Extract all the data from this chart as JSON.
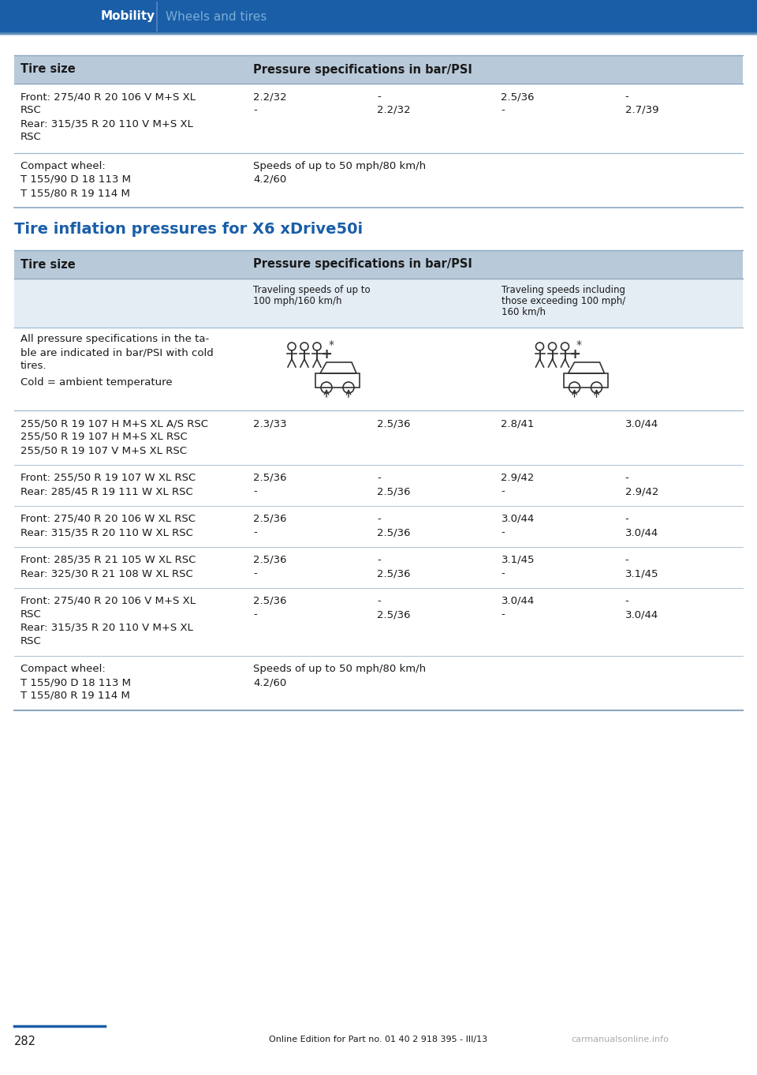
{
  "page_bg": "#ffffff",
  "header_bg": "#1a5ea8",
  "header_label": "Mobility",
  "header_sublabel": "Wheels and tires",
  "header_text_color": "#ffffff",
  "subheader_text_color": "#7aadd4",
  "table_header_bg": "#b8c9d9",
  "table_border_top": "#8da8c0",
  "table_border_row": "#a0b8cc",
  "table_border_bottom": "#8da8c0",
  "subrow_bg": "#e4ecf4",
  "body_color": "#1a1a1a",
  "section_title_color": "#1a5ea8",
  "section_title": "Tire inflation pressures for X6 xDrive50i",
  "footer_page": "282",
  "footer_text": "Online Edition for Part no. 01 40 2 918 395 - III/13",
  "footer_watermark": "carmanualsonline.info",
  "t1_rows": [
    {
      "tire_lines": [
        "Front: 275/40 R 20 106 V M+S XL",
        "RSC",
        "Rear: 315/35 R 20 110 V M+S XL",
        "RSC"
      ],
      "pressure_rows": [
        [
          "2.2/32",
          "-",
          "2.5/36",
          "-"
        ],
        [
          "-",
          "2.2/32",
          "-",
          "2.7/39"
        ]
      ]
    },
    {
      "tire_lines": [
        "Compact wheel:",
        "T 155/90 D 18 113 M",
        "T 155/80 R 19 114 M"
      ],
      "pressure_rows": [
        [
          "Speeds of up to 50 mph/80 km/h",
          "",
          "",
          ""
        ],
        [
          "4.2/60",
          "",
          "",
          ""
        ]
      ],
      "last": true
    }
  ],
  "t2_rows": [
    {
      "tire_lines": [
        "255/50 R 19 107 H M+S XL A/S RSC",
        "255/50 R 19 107 H M+S XL RSC",
        "255/50 R 19 107 V M+S XL RSC"
      ],
      "pressure_rows": [
        [
          "2.3/33",
          "2.5/36",
          "2.8/41",
          "3.0/44"
        ]
      ]
    },
    {
      "tire_lines": [
        "Front: 255/50 R 19 107 W XL RSC",
        "Rear: 285/45 R 19 111 W XL RSC"
      ],
      "pressure_rows": [
        [
          "2.5/36",
          "-",
          "2.9/42",
          "-"
        ],
        [
          "-",
          "2.5/36",
          "-",
          "2.9/42"
        ]
      ]
    },
    {
      "tire_lines": [
        "Front: 275/40 R 20 106 W XL RSC",
        "Rear: 315/35 R 20 110 W XL RSC"
      ],
      "pressure_rows": [
        [
          "2.5/36",
          "-",
          "3.0/44",
          "-"
        ],
        [
          "-",
          "2.5/36",
          "-",
          "3.0/44"
        ]
      ]
    },
    {
      "tire_lines": [
        "Front: 285/35 R 21 105 W XL RSC",
        "Rear: 325/30 R 21 108 W XL RSC"
      ],
      "pressure_rows": [
        [
          "2.5/36",
          "-",
          "3.1/45",
          "-"
        ],
        [
          "-",
          "2.5/36",
          "-",
          "3.1/45"
        ]
      ]
    },
    {
      "tire_lines": [
        "Front: 275/40 R 20 106 V M+S XL",
        "RSC",
        "Rear: 315/35 R 20 110 V M+S XL",
        "RSC"
      ],
      "pressure_rows": [
        [
          "2.5/36",
          "-",
          "3.0/44",
          "-"
        ],
        [
          "-",
          "2.5/36",
          "-",
          "3.0/44"
        ]
      ]
    },
    {
      "tire_lines": [
        "Compact wheel:",
        "T 155/90 D 18 113 M",
        "T 155/80 R 19 114 M"
      ],
      "pressure_rows": [
        [
          "Speeds of up to 50 mph/80 km/h",
          "",
          "",
          ""
        ],
        [
          "4.2/60",
          "",
          "",
          ""
        ]
      ],
      "last": true
    }
  ]
}
